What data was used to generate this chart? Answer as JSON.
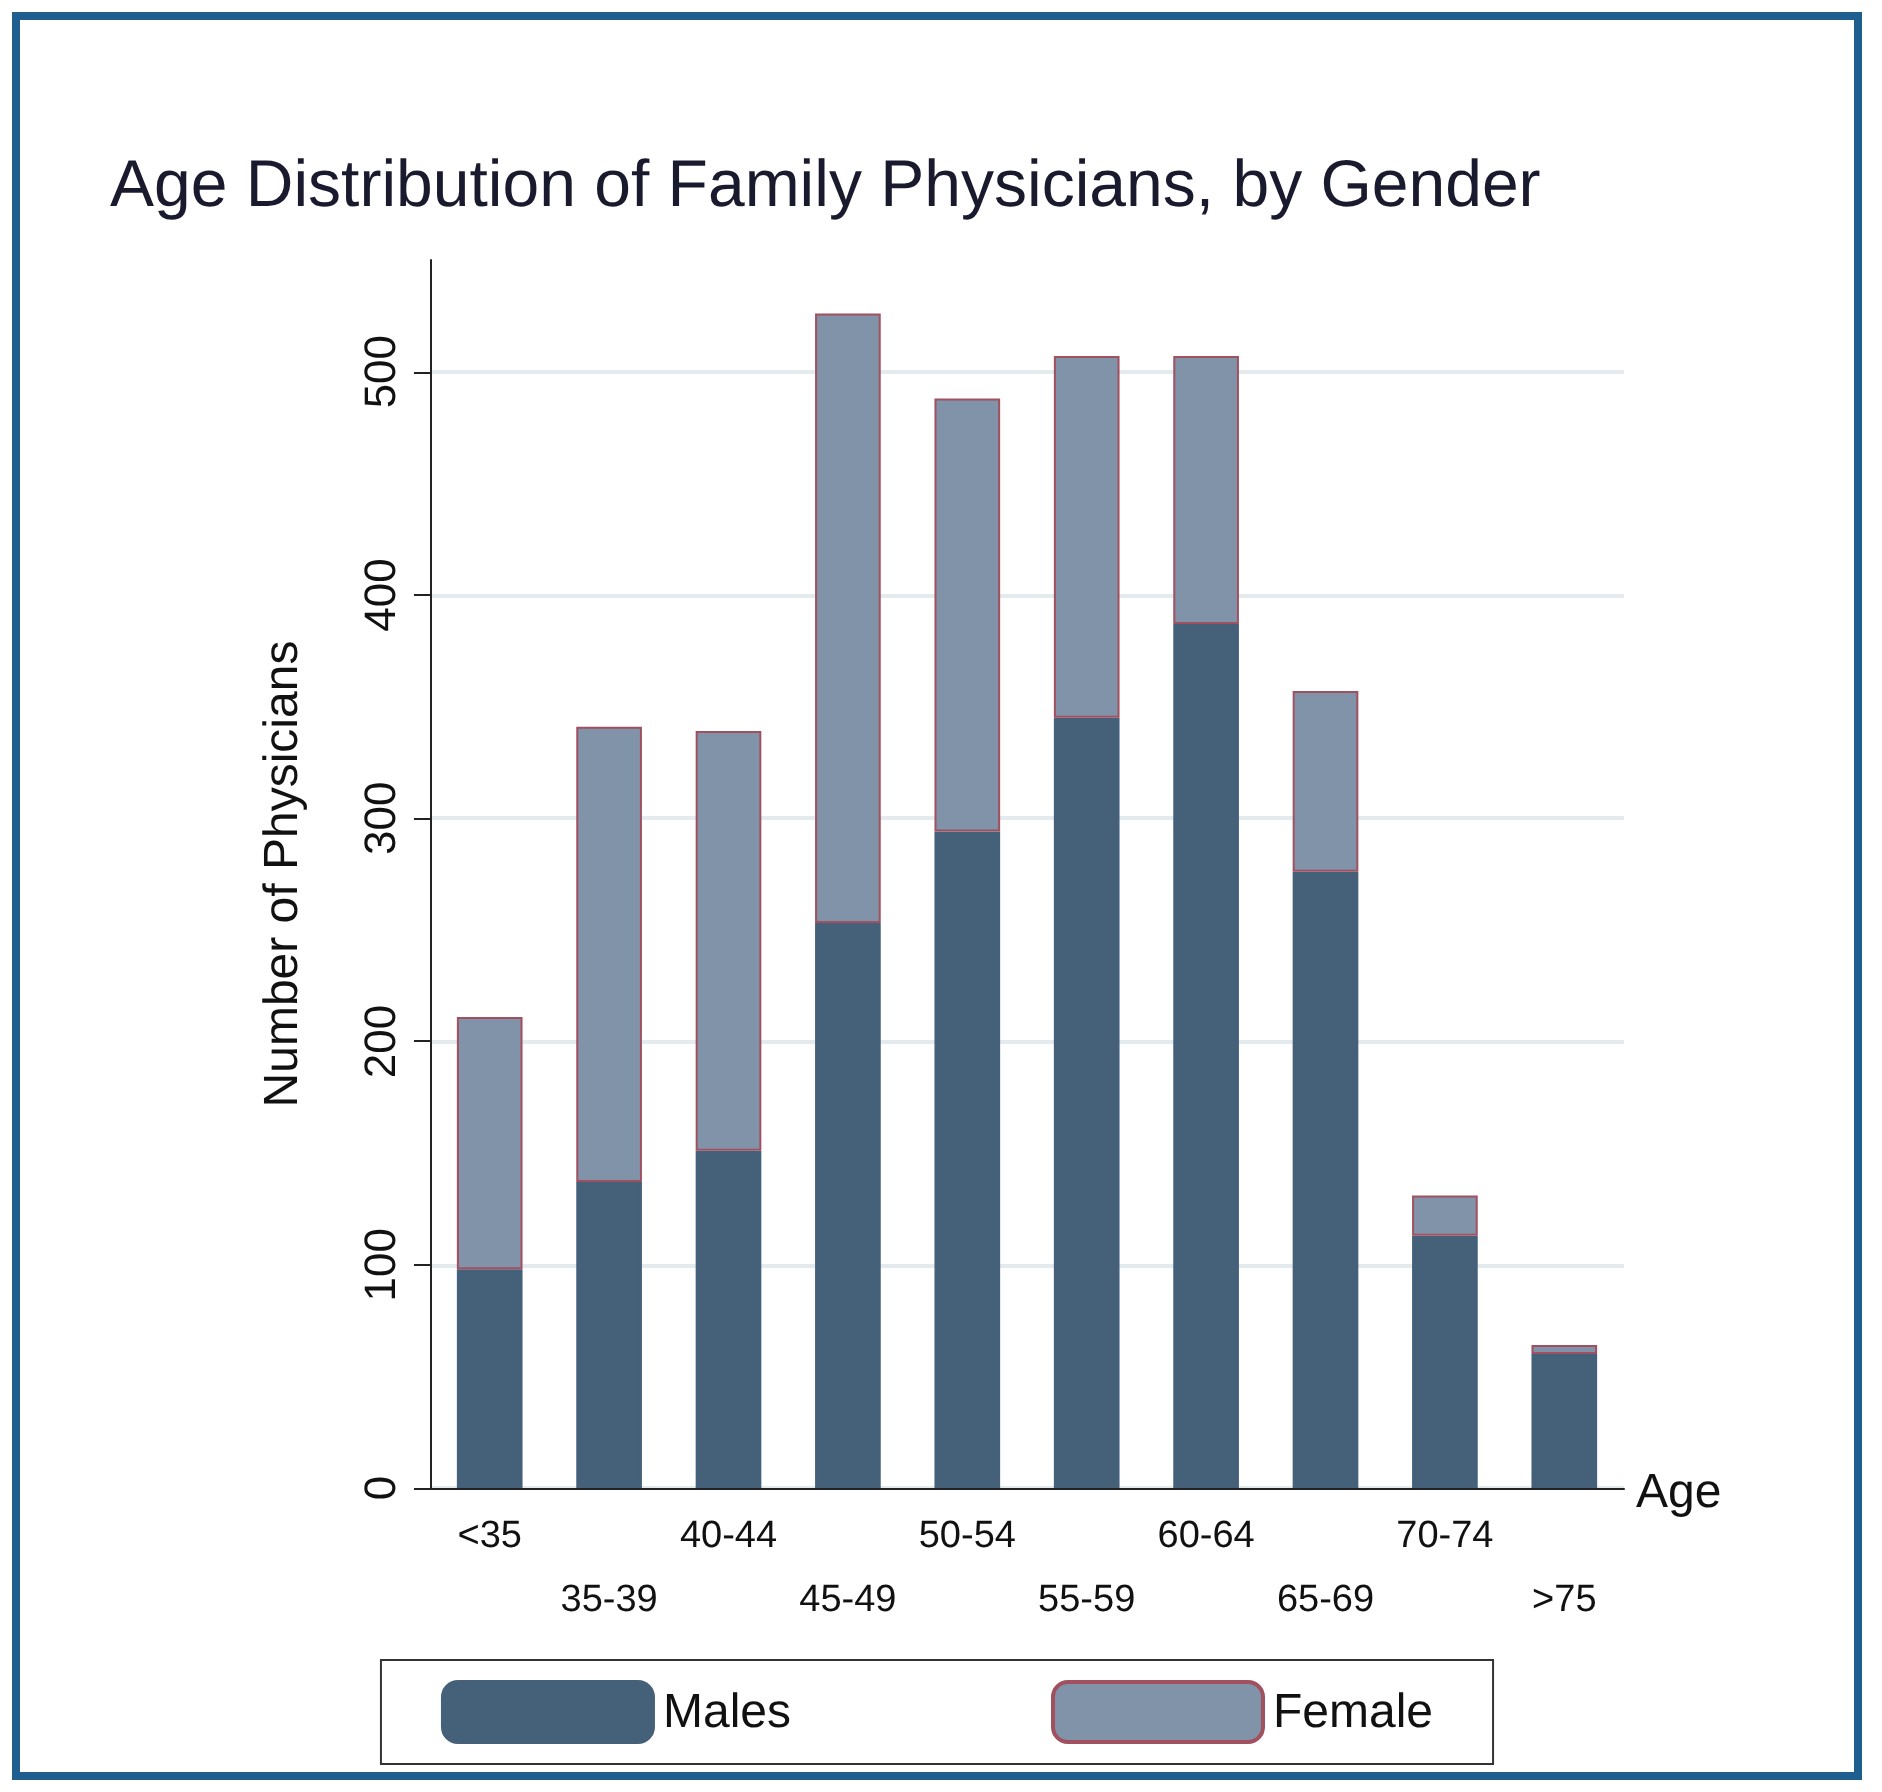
{
  "chart_data": {
    "type": "bar",
    "title": "Age Distribution of Family Physicians, by Gender",
    "xlabel": "Age",
    "ylabel": "Number of Physicians",
    "categories": [
      "<35",
      "35-39",
      "40-44",
      "45-49",
      "50-54",
      "55-59",
      "60-64",
      "65-69",
      "70-74",
      ">75"
    ],
    "stacked": true,
    "series": [
      {
        "name": "Males",
        "color": "#45617a",
        "values": [
          98,
          137,
          151,
          253,
          294,
          345,
          387,
          276,
          113,
          60
        ]
      },
      {
        "name": "Female",
        "color": "#8093a8",
        "values": [
          113,
          204,
          188,
          273,
          194,
          162,
          120,
          81,
          18,
          4
        ]
      }
    ],
    "ylim": [
      0,
      550
    ],
    "yticks": [
      0,
      100,
      200,
      300,
      400,
      500
    ],
    "grid": "y",
    "legend": "bottom"
  }
}
